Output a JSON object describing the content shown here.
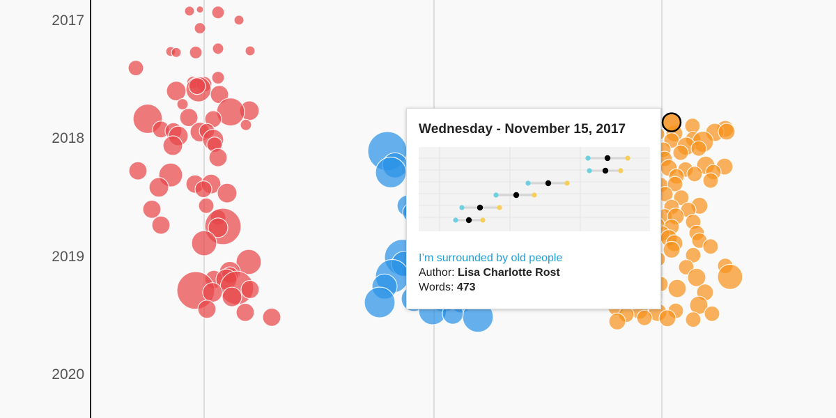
{
  "chart_data": {
    "type": "scatter",
    "subtype": "beeswarm",
    "y_ticks": [
      "2017",
      "2018",
      "2019",
      "2020"
    ],
    "grid": "vertical lines at column centres",
    "colors": {
      "red": "#e8474a",
      "blue": "#2b93e6",
      "orange": "#f7931e",
      "hover_outline": "#000000"
    },
    "series": [
      {
        "color": "red",
        "points": [
          {
            "col": 272,
            "date": "2016-12-06",
            "r": 7
          },
          {
            "col": 287,
            "date": "2016-12-01",
            "r": 5
          },
          {
            "col": 313,
            "date": "2016-12-10",
            "r": 9
          },
          {
            "col": 343,
            "date": "2017-01-03",
            "r": 7
          },
          {
            "col": 287,
            "date": "2017-01-28",
            "r": 8
          },
          {
            "col": 245,
            "date": "2017-04-10",
            "r": 7
          },
          {
            "col": 253,
            "date": "2017-04-13",
            "r": 7
          },
          {
            "col": 281,
            "date": "2017-04-13",
            "r": 9
          },
          {
            "col": 313,
            "date": "2017-04-01",
            "r": 8
          },
          {
            "col": 359,
            "date": "2017-04-08",
            "r": 7
          },
          {
            "col": 195,
            "date": "2017-05-31",
            "r": 11
          },
          {
            "col": 313,
            "date": "2017-06-30",
            "r": 9
          },
          {
            "col": 277,
            "date": "2017-07-15",
            "r": 9
          },
          {
            "col": 293,
            "date": "2017-07-20",
            "r": 11
          },
          {
            "col": 253,
            "date": "2017-08-10",
            "r": 14
          },
          {
            "col": 285,
            "date": "2017-08-05",
            "r": 18
          },
          {
            "col": 283,
            "date": "2017-07-26",
            "r": 12
          },
          {
            "col": 315,
            "date": "2017-08-21",
            "r": 13
          },
          {
            "col": 262,
            "date": "2017-09-20",
            "r": 8
          },
          {
            "col": 358,
            "date": "2017-10-10",
            "r": 14
          },
          {
            "col": 331,
            "date": "2017-10-14",
            "r": 20
          },
          {
            "col": 212,
            "date": "2017-11-04",
            "r": 21
          },
          {
            "col": 271,
            "date": "2017-10-31",
            "r": 13
          },
          {
            "col": 306,
            "date": "2017-11-05",
            "r": 12
          },
          {
            "col": 353,
            "date": "2017-11-23",
            "r": 8
          },
          {
            "col": 231,
            "date": "2017-12-07",
            "r": 12
          },
          {
            "col": 249,
            "date": "2017-12-12",
            "r": 12
          },
          {
            "col": 287,
            "date": "2017-12-15",
            "r": 14
          },
          {
            "col": 297,
            "date": "2017-12-12",
            "r": 11
          },
          {
            "col": 256,
            "date": "2017-12-27",
            "r": 14
          },
          {
            "col": 306,
            "date": "2018-01-08",
            "r": 15
          },
          {
            "col": 248,
            "date": "2018-01-26",
            "r": 14
          },
          {
            "col": 308,
            "date": "2018-01-23",
            "r": 11
          },
          {
            "col": 313,
            "date": "2018-03-04",
            "r": 13
          },
          {
            "col": 198,
            "date": "2018-04-14",
            "r": 13
          },
          {
            "col": 245,
            "date": "2018-04-27",
            "r": 17
          },
          {
            "col": 280,
            "date": "2018-05-25",
            "r": 13
          },
          {
            "col": 303,
            "date": "2018-05-25",
            "r": 14
          },
          {
            "col": 228,
            "date": "2018-06-04",
            "r": 14
          },
          {
            "col": 292,
            "date": "2018-06-10",
            "r": 12
          },
          {
            "col": 326,
            "date": "2018-06-22",
            "r": 14
          },
          {
            "col": 296,
            "date": "2018-07-31",
            "r": 11
          },
          {
            "col": 218,
            "date": "2018-08-11",
            "r": 13
          },
          {
            "col": 313,
            "date": "2018-09-05",
            "r": 11
          },
          {
            "col": 231,
            "date": "2018-09-29",
            "r": 13
          },
          {
            "col": 320,
            "date": "2018-10-03",
            "r": 26
          },
          {
            "col": 313,
            "date": "2018-10-07",
            "r": 14
          },
          {
            "col": 293,
            "date": "2018-11-24",
            "r": 18
          },
          {
            "col": 357,
            "date": "2019-01-21",
            "r": 18
          },
          {
            "col": 330,
            "date": "2019-02-21",
            "r": 15
          },
          {
            "col": 330,
            "date": "2019-03-03",
            "r": 12
          },
          {
            "col": 307,
            "date": "2019-03-16",
            "r": 13
          },
          {
            "col": 325,
            "date": "2019-03-16",
            "r": 15
          },
          {
            "col": 281,
            "date": "2019-04-19",
            "r": 27
          },
          {
            "col": 340,
            "date": "2019-04-11",
            "r": 24
          },
          {
            "col": 359,
            "date": "2019-04-16",
            "r": 13
          },
          {
            "col": 305,
            "date": "2019-04-25",
            "r": 14
          },
          {
            "col": 333,
            "date": "2019-05-09",
            "r": 14
          },
          {
            "col": 297,
            "date": "2019-06-16",
            "r": 13
          },
          {
            "col": 352,
            "date": "2019-06-26",
            "r": 13
          },
          {
            "col": 390,
            "date": "2019-07-11",
            "r": 13
          }
        ]
      },
      {
        "color": "blue",
        "points": [
          {
            "col": 631,
            "date": "2017-11-25",
            "r": 22
          },
          {
            "col": 687,
            "date": "2017-11-26",
            "r": 16
          },
          {
            "col": 556,
            "date": "2018-02-12",
            "r": 28
          },
          {
            "col": 567,
            "date": "2018-03-28",
            "r": 18
          },
          {
            "col": 561,
            "date": "2018-04-19",
            "r": 22
          },
          {
            "col": 585,
            "date": "2018-07-31",
            "r": 15
          },
          {
            "col": 592,
            "date": "2018-08-21",
            "r": 14
          },
          {
            "col": 603,
            "date": "2018-10-16",
            "r": 15
          },
          {
            "col": 685,
            "date": "2018-10-16",
            "r": 20
          },
          {
            "col": 578,
            "date": "2019-01-07",
            "r": 26
          },
          {
            "col": 603,
            "date": "2019-01-15",
            "r": 20
          },
          {
            "col": 580,
            "date": "2019-01-27",
            "r": 18
          },
          {
            "col": 607,
            "date": "2019-01-30",
            "r": 13
          },
          {
            "col": 563,
            "date": "2019-03-06",
            "r": 24
          },
          {
            "col": 681,
            "date": "2019-03-10",
            "r": 21
          },
          {
            "col": 552,
            "date": "2019-04-07",
            "r": 18
          },
          {
            "col": 629,
            "date": "2019-04-13",
            "r": 23
          },
          {
            "col": 613,
            "date": "2019-04-25",
            "r": 22
          },
          {
            "col": 672,
            "date": "2019-04-25",
            "r": 20
          },
          {
            "col": 637,
            "date": "2019-05-08",
            "r": 22
          },
          {
            "col": 594,
            "date": "2019-05-15",
            "r": 18
          },
          {
            "col": 545,
            "date": "2019-05-26",
            "r": 22
          },
          {
            "col": 662,
            "date": "2019-05-26",
            "r": 15
          },
          {
            "col": 621,
            "date": "2019-06-21",
            "r": 20
          },
          {
            "col": 686,
            "date": "2019-07-10",
            "r": 22
          },
          {
            "col": 650,
            "date": "2019-06-30",
            "r": 15
          }
        ]
      },
      {
        "color": "orange",
        "points": [
          {
            "col": 964,
            "date": "2017-11-15",
            "r": 13,
            "hovered": true
          },
          {
            "col": 994,
            "date": "2017-11-26",
            "r": 11
          },
          {
            "col": 1041,
            "date": "2017-12-05",
            "r": 12
          },
          {
            "col": 1026,
            "date": "2017-12-16",
            "r": 13
          },
          {
            "col": 1043,
            "date": "2017-12-14",
            "r": 12
          },
          {
            "col": 968,
            "date": "2017-12-19",
            "r": 12
          },
          {
            "col": 944,
            "date": "2017-12-21",
            "r": 10
          },
          {
            "col": 995,
            "date": "2018-01-06",
            "r": 11
          },
          {
            "col": 1009,
            "date": "2018-01-14",
            "r": 15
          },
          {
            "col": 964,
            "date": "2018-01-10",
            "r": 11
          },
          {
            "col": 985,
            "date": "2018-01-28",
            "r": 13
          },
          {
            "col": 952,
            "date": "2018-02-08",
            "r": 11
          },
          {
            "col": 1003,
            "date": "2018-02-04",
            "r": 11
          },
          {
            "col": 977,
            "date": "2018-02-17",
            "r": 11
          },
          {
            "col": 954,
            "date": "2018-03-08",
            "r": 11
          },
          {
            "col": 1013,
            "date": "2018-03-28",
            "r": 13
          },
          {
            "col": 1040,
            "date": "2018-04-01",
            "r": 12
          },
          {
            "col": 960,
            "date": "2018-04-05",
            "r": 12
          },
          {
            "col": 984,
            "date": "2018-04-10",
            "r": 11
          },
          {
            "col": 997,
            "date": "2018-04-24",
            "r": 11
          },
          {
            "col": 1024,
            "date": "2018-04-18",
            "r": 11
          },
          {
            "col": 971,
            "date": "2018-05-01",
            "r": 11
          },
          {
            "col": 1020,
            "date": "2018-05-14",
            "r": 11
          },
          {
            "col": 948,
            "date": "2018-05-28",
            "r": 11
          },
          {
            "col": 969,
            "date": "2018-05-25",
            "r": 11
          },
          {
            "col": 955,
            "date": "2018-06-25",
            "r": 11
          },
          {
            "col": 978,
            "date": "2018-07-06",
            "r": 11
          },
          {
            "col": 1004,
            "date": "2018-07-31",
            "r": 12
          },
          {
            "col": 964,
            "date": "2018-08-04",
            "r": 11
          },
          {
            "col": 988,
            "date": "2018-08-13",
            "r": 11
          },
          {
            "col": 937,
            "date": "2018-08-17",
            "r": 12
          },
          {
            "col": 954,
            "date": "2018-09-02",
            "r": 11
          },
          {
            "col": 970,
            "date": "2018-09-02",
            "r": 12
          },
          {
            "col": 995,
            "date": "2018-09-19",
            "r": 11
          },
          {
            "col": 909,
            "date": "2018-09-16",
            "r": 10
          },
          {
            "col": 943,
            "date": "2018-09-28",
            "r": 11
          },
          {
            "col": 918,
            "date": "2018-10-04",
            "r": 11
          },
          {
            "col": 964,
            "date": "2018-10-04",
            "r": 11
          },
          {
            "col": 1000,
            "date": "2018-10-23",
            "r": 11
          },
          {
            "col": 896,
            "date": "2018-10-17",
            "r": 12
          },
          {
            "col": 924,
            "date": "2018-10-25",
            "r": 11
          },
          {
            "col": 950,
            "date": "2018-10-25",
            "r": 11
          },
          {
            "col": 960,
            "date": "2018-11-08",
            "r": 12
          },
          {
            "col": 1004,
            "date": "2018-11-16",
            "r": 11
          },
          {
            "col": 937,
            "date": "2018-11-24",
            "r": 11
          },
          {
            "col": 968,
            "date": "2018-11-24",
            "r": 12
          },
          {
            "col": 1020,
            "date": "2018-12-04",
            "r": 11
          },
          {
            "col": 964,
            "date": "2018-12-14",
            "r": 12
          },
          {
            "col": 995,
            "date": "2018-12-31",
            "r": 11
          },
          {
            "col": 944,
            "date": "2019-01-12",
            "r": 11
          },
          {
            "col": 1041,
            "date": "2019-02-02",
            "r": 11
          },
          {
            "col": 985,
            "date": "2019-02-06",
            "r": 11
          },
          {
            "col": 1048,
            "date": "2019-03-08",
            "r": 18
          },
          {
            "col": 1000,
            "date": "2019-03-10",
            "r": 13
          },
          {
            "col": 888,
            "date": "2019-03-08",
            "r": 11
          },
          {
            "col": 948,
            "date": "2019-03-30",
            "r": 11
          },
          {
            "col": 896,
            "date": "2019-04-21",
            "r": 12
          },
          {
            "col": 972,
            "date": "2019-04-13",
            "r": 13
          },
          {
            "col": 1012,
            "date": "2019-04-25",
            "r": 12
          },
          {
            "col": 878,
            "date": "2019-05-17",
            "r": 11
          },
          {
            "col": 906,
            "date": "2019-05-22",
            "r": 12
          },
          {
            "col": 939,
            "date": "2019-05-24",
            "r": 11
          },
          {
            "col": 1003,
            "date": "2019-06-04",
            "r": 13
          },
          {
            "col": 884,
            "date": "2019-06-12",
            "r": 11
          },
          {
            "col": 918,
            "date": "2019-06-21",
            "r": 12
          },
          {
            "col": 944,
            "date": "2019-06-26",
            "r": 13
          },
          {
            "col": 970,
            "date": "2019-06-21",
            "r": 11
          },
          {
            "col": 1022,
            "date": "2019-06-30",
            "r": 11
          },
          {
            "col": 899,
            "date": "2019-07-03",
            "r": 11
          },
          {
            "col": 925,
            "date": "2019-07-13",
            "r": 11
          },
          {
            "col": 958,
            "date": "2019-07-14",
            "r": 12
          },
          {
            "col": 995,
            "date": "2019-07-18",
            "r": 11
          },
          {
            "col": 886,
            "date": "2019-07-24",
            "r": 12
          }
        ]
      }
    ]
  },
  "tooltip": {
    "date": "Wednesday - November 15, 2017",
    "title": "I’m surrounded by old people",
    "author_label": "Author: ",
    "author": "Lisa Charlotte Rost",
    "words_label": "Words: ",
    "words": "473",
    "mini_chart": {
      "type": "dot-range",
      "colors": {
        "start": "#6dcfe0",
        "mid": "#000000",
        "end": "#f5cf5a",
        "bar": "#d6d6d6"
      },
      "rows": [
        {
          "start": 843,
          "mid": 871,
          "end": 900
        },
        {
          "start": 845,
          "mid": 868,
          "end": 890
        },
        {
          "start": 757,
          "mid": 786,
          "end": 813
        },
        {
          "start": 711,
          "mid": 740,
          "end": 766
        },
        {
          "start": 662,
          "mid": 688,
          "end": 716
        },
        {
          "start": 653,
          "mid": 672,
          "end": 692
        }
      ]
    }
  }
}
